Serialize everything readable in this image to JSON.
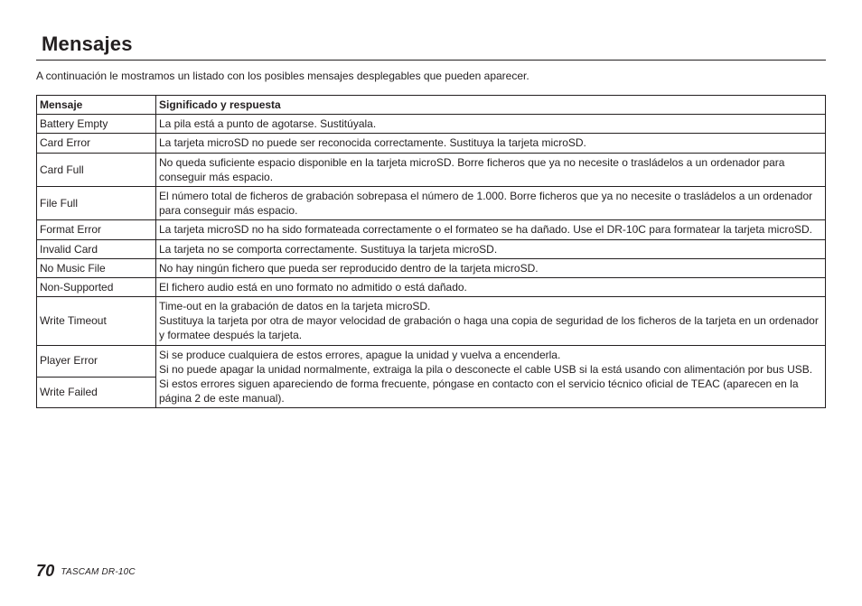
{
  "title": "Mensajes",
  "intro": "A continuación le mostramos un listado con los posibles mensajes desplegables que pueden aparecer.",
  "table": {
    "headers": {
      "c1": "Mensaje",
      "c2": "Significado y respuesta"
    },
    "rows": [
      {
        "msg": "Battery Empty",
        "resp": "La pila está a punto de agotarse. Sustitúyala."
      },
      {
        "msg": "Card Error",
        "resp": "La tarjeta microSD no puede ser reconocida correctamente. Sustituya la tarjeta microSD."
      },
      {
        "msg": "Card Full",
        "resp": "No queda suficiente espacio disponible en la tarjeta microSD. Borre ficheros que ya no necesite o trasládelos a un ordenador para conseguir más espacio."
      },
      {
        "msg": "File Full",
        "resp": "El número total de ficheros de grabación sobrepasa el número de 1.000. Borre ficheros que ya no necesite o trasládelos a un ordenador para conseguir más espacio."
      },
      {
        "msg": "Format Error",
        "resp": "La tarjeta microSD no ha sido formateada correctamente o el formateo se ha dañado. Use el DR-10C para formatear la tarjeta microSD."
      },
      {
        "msg": "Invalid Card",
        "resp": "La tarjeta no se comporta correctamente. Sustituya la tarjeta microSD."
      },
      {
        "msg": "No Music File",
        "resp": "No hay ningún fichero que pueda ser reproducido dentro de la tarjeta microSD."
      },
      {
        "msg": "Non-Supported",
        "resp": "El fichero audio está en uno formato no admitido o está dañado."
      },
      {
        "msg": "Write Timeout",
        "resp": "Time-out en la grabación de datos en la tarjeta microSD.\nSustituya la tarjeta por otra de mayor velocidad de grabación o haga una copia de seguridad de los ficheros de la tarjeta en un ordenador y formatee después la tarjeta."
      },
      {
        "msg": "Player Error",
        "resp_rowspan_start": true,
        "resp": "Si se produce cualquiera de estos errores, apague la unidad y vuelva a encenderla.\nSi no puede apagar la unidad normalmente, extraiga la pila o desconecte el cable USB si la está usando con alimentación por bus USB.\nSi estos errores siguen apareciendo de forma frecuente, póngase en contacto con el servicio técnico oficial de TEAC (aparecen en la página 2 de este manual)."
      },
      {
        "msg": "Write Failed",
        "resp_rowspan_cont": true
      }
    ]
  },
  "footer": {
    "page": "70",
    "model": "TASCAM  DR-10C"
  }
}
